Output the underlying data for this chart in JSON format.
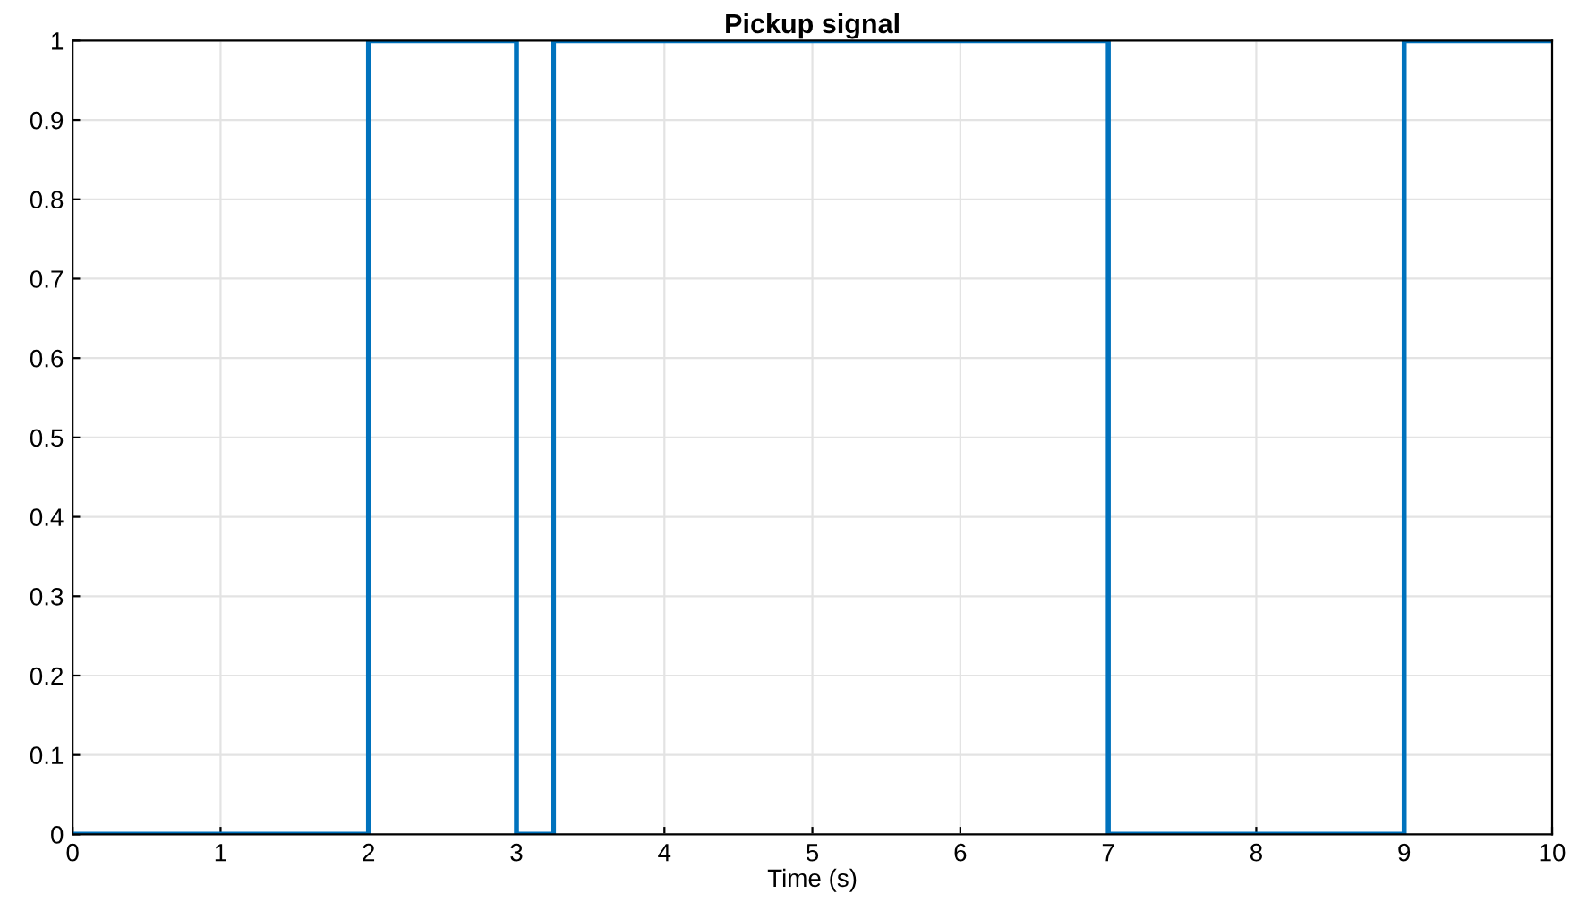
{
  "chart_data": {
    "type": "step",
    "title": "Pickup signal",
    "xlabel": "Time (s)",
    "x": [
      0,
      2,
      3,
      3.25,
      7,
      9,
      10
    ],
    "series": [
      {
        "color": "#0072bd",
        "values": [
          0,
          1,
          0,
          1,
          0,
          1,
          1
        ]
      }
    ],
    "xlim": [
      0,
      10
    ],
    "xticks": [
      0,
      1,
      2,
      3,
      4,
      5,
      6,
      7,
      8,
      9,
      10
    ],
    "ylim": [
      0,
      1
    ],
    "yticks": [
      0,
      0.1,
      0.2,
      0.3,
      0.4,
      0.5,
      0.6,
      0.7,
      0.8,
      0.9,
      1
    ],
    "grid": true,
    "marker": "none",
    "line_style": "solid"
  }
}
